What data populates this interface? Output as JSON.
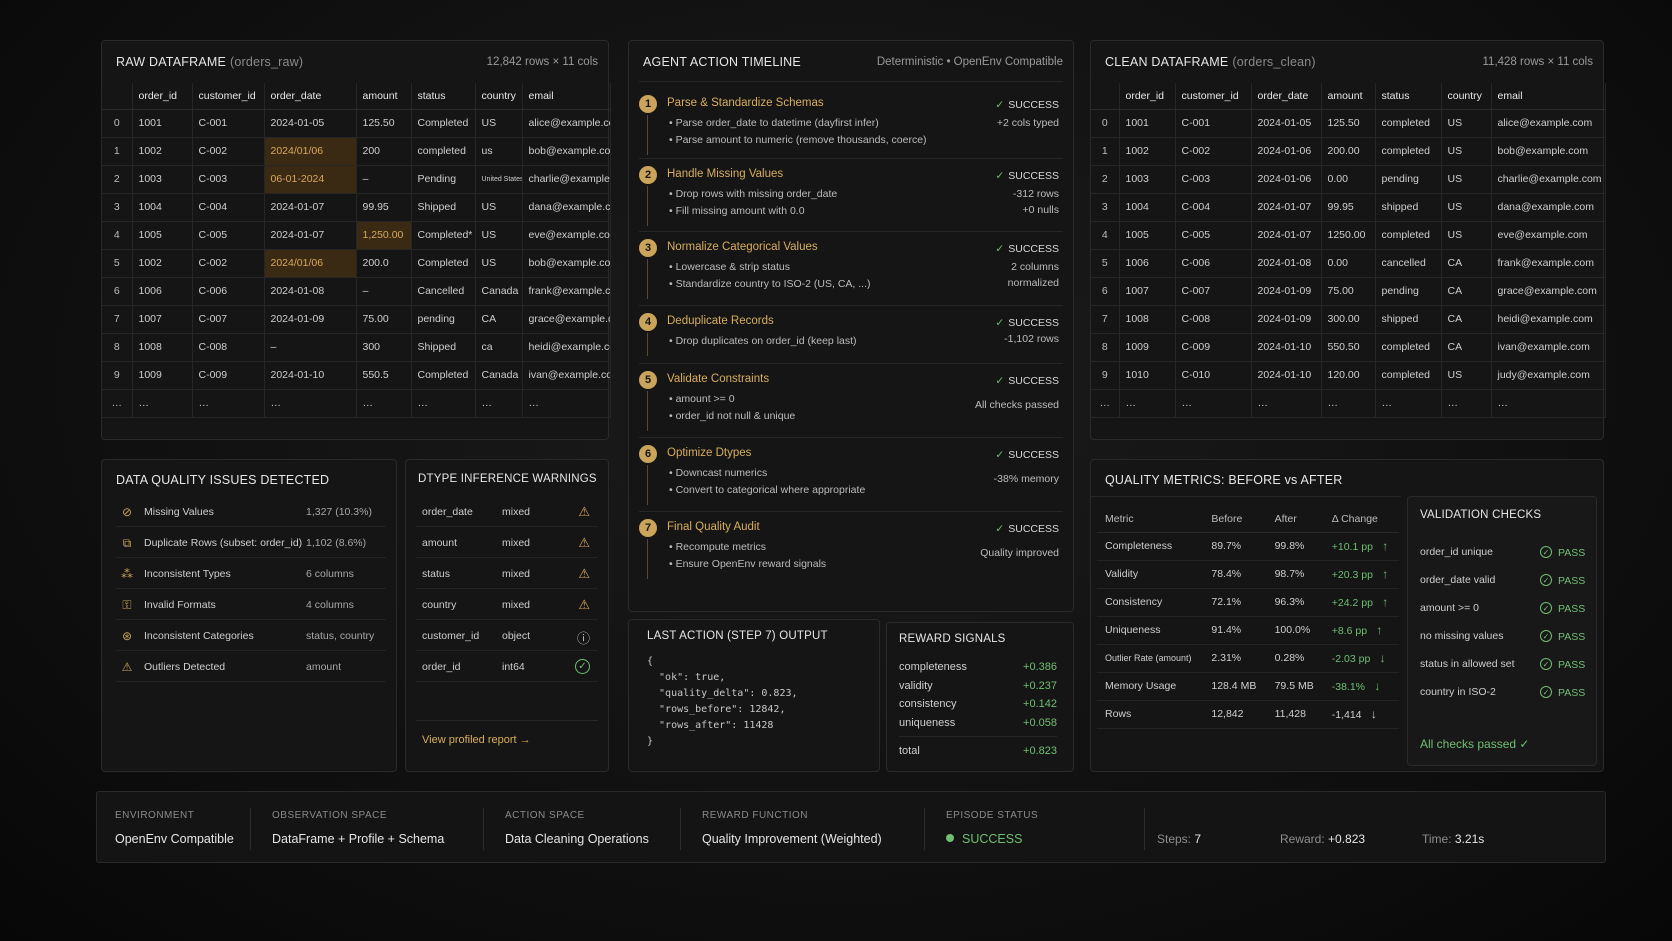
{
  "raw": {
    "title": "RAW DATAFRAME",
    "subtitle": "(orders_raw)",
    "meta": "12,842 rows × 11 cols",
    "columns": [
      "",
      "order_id",
      "customer_id",
      "order_date",
      "amount",
      "status",
      "country",
      "email"
    ],
    "rows": [
      [
        "0",
        "1001",
        "C-001",
        "2024-01-05",
        "125.50",
        "Completed",
        "US",
        "alice@example.com"
      ],
      [
        "1",
        "1002",
        "C-002",
        "2024/01/06",
        "200",
        "completed",
        "us",
        "bob@example.com"
      ],
      [
        "2",
        "1003",
        "C-003",
        "06-01-2024",
        "–",
        "Pending",
        "United States",
        "charlie@example.com"
      ],
      [
        "3",
        "1004",
        "C-004",
        "2024-01-07",
        "99.95",
        "Shipped",
        "US",
        "dana@example.com"
      ],
      [
        "4",
        "1005",
        "C-005",
        "2024-01-07",
        "1,250.00",
        "Completed*",
        "US",
        "eve@example.com"
      ],
      [
        "5",
        "1002",
        "C-002",
        "2024/01/06",
        "200.0",
        "Completed",
        "US",
        "bob@example.com"
      ],
      [
        "6",
        "1006",
        "C-006",
        "2024-01-08",
        "–",
        "Cancelled",
        "Canada",
        "frank@example.com"
      ],
      [
        "7",
        "1007",
        "C-007",
        "2024-01-09",
        "75.00",
        "pending",
        "CA",
        "grace@example.com"
      ],
      [
        "8",
        "1008",
        "C-008",
        "–",
        "300",
        "Shipped",
        "ca",
        "heidi@example.com"
      ],
      [
        "9",
        "1009",
        "C-009",
        "2024-01-10",
        "550.5",
        "Completed",
        "Canada",
        "ivan@example.com"
      ],
      [
        "…",
        "…",
        "…",
        "…",
        "…",
        "…",
        "…",
        "…"
      ]
    ]
  },
  "timeline": {
    "title": "AGENT ACTION TIMELINE",
    "meta": "Deterministic • OpenEnv Compatible",
    "steps": [
      {
        "num": "1",
        "title": "Parse & Standardize Schemas",
        "bullets": [
          "Parse order_date to datetime (dayfirst infer)",
          "Parse amount to numeric (remove thousands, coerce)"
        ],
        "status": "SUCCESS",
        "result": [
          "+2 cols typed"
        ]
      },
      {
        "num": "2",
        "title": "Handle Missing Values",
        "bullets": [
          "Drop rows with missing order_date",
          "Fill missing amount with 0.0"
        ],
        "status": "SUCCESS",
        "result": [
          "-312 rows",
          "+0 nulls"
        ]
      },
      {
        "num": "3",
        "title": "Normalize Categorical Values",
        "bullets": [
          "Lowercase & strip status",
          "Standardize country to ISO-2 (US, CA, ...)"
        ],
        "status": "SUCCESS",
        "result": [
          "2 columns",
          "normalized"
        ]
      },
      {
        "num": "4",
        "title": "Deduplicate Records",
        "bullets": [
          "Drop duplicates on order_id (keep last)"
        ],
        "status": "SUCCESS",
        "result": [
          "-1,102 rows"
        ]
      },
      {
        "num": "5",
        "title": "Validate Constraints",
        "bullets": [
          "amount >= 0",
          "order_id not null & unique"
        ],
        "status": "SUCCESS",
        "result": [
          "All checks passed"
        ]
      },
      {
        "num": "6",
        "title": "Optimize Dtypes",
        "bullets": [
          "Downcast numerics",
          "Convert to categorical where appropriate"
        ],
        "status": "SUCCESS",
        "result": [
          "-38% memory"
        ]
      },
      {
        "num": "7",
        "title": "Final Quality Audit",
        "bullets": [
          "Recompute metrics",
          "Ensure OpenEnv reward signals"
        ],
        "status": "SUCCESS",
        "result": [
          "Quality improved"
        ]
      }
    ]
  },
  "clean": {
    "title": "CLEAN DATAFRAME",
    "subtitle": "(orders_clean)",
    "meta": "11,428 rows × 11 cols",
    "columns": [
      "",
      "order_id",
      "customer_id",
      "order_date",
      "amount",
      "status",
      "country",
      "email"
    ],
    "rows": [
      [
        "0",
        "1001",
        "C-001",
        "2024-01-05",
        "125.50",
        "completed",
        "US",
        "alice@example.com"
      ],
      [
        "1",
        "1002",
        "C-002",
        "2024-01-06",
        "200.00",
        "completed",
        "US",
        "bob@example.com"
      ],
      [
        "2",
        "1003",
        "C-003",
        "2024-01-06",
        "0.00",
        "pending",
        "US",
        "charlie@example.com"
      ],
      [
        "3",
        "1004",
        "C-004",
        "2024-01-07",
        "99.95",
        "shipped",
        "US",
        "dana@example.com"
      ],
      [
        "4",
        "1005",
        "C-005",
        "2024-01-07",
        "1250.00",
        "completed",
        "US",
        "eve@example.com"
      ],
      [
        "5",
        "1006",
        "C-006",
        "2024-01-08",
        "0.00",
        "cancelled",
        "CA",
        "frank@example.com"
      ],
      [
        "6",
        "1007",
        "C-007",
        "2024-01-09",
        "75.00",
        "pending",
        "CA",
        "grace@example.com"
      ],
      [
        "7",
        "1008",
        "C-008",
        "2024-01-09",
        "300.00",
        "shipped",
        "CA",
        "heidi@example.com"
      ],
      [
        "8",
        "1009",
        "C-009",
        "2024-01-10",
        "550.50",
        "completed",
        "CA",
        "ivan@example.com"
      ],
      [
        "9",
        "1010",
        "C-010",
        "2024-01-10",
        "120.00",
        "completed",
        "US",
        "judy@example.com"
      ],
      [
        "…",
        "…",
        "…",
        "…",
        "…",
        "…",
        "…",
        "…"
      ]
    ]
  },
  "issues": {
    "title": "DATA QUALITY ISSUES DETECTED",
    "items": [
      {
        "icon": "missing-values-icon",
        "glyph": "⊘",
        "label": "Missing Values",
        "value": "1,327 (10.3%)"
      },
      {
        "icon": "duplicate-rows-icon",
        "glyph": "⧉",
        "label": "Duplicate Rows (subset: order_id)",
        "value": "1,102 (8.6%)"
      },
      {
        "icon": "inconsistent-types-icon",
        "glyph": "⁂",
        "label": "Inconsistent Types",
        "value": "6 columns"
      },
      {
        "icon": "invalid-formats-icon",
        "glyph": "⚿",
        "label": "Invalid Formats",
        "value": "4 columns"
      },
      {
        "icon": "inconsistent-categories-icon",
        "glyph": "⊛",
        "label": "Inconsistent Categories",
        "value": "status, country"
      },
      {
        "icon": "outliers-icon",
        "glyph": "⚠",
        "label": "Outliers Detected",
        "value": "amount"
      }
    ]
  },
  "dtype": {
    "title": "DTYPE INFERENCE WARNINGS",
    "items": [
      {
        "col": "order_date",
        "type": "mixed",
        "icon": "warning-icon"
      },
      {
        "col": "amount",
        "type": "mixed",
        "icon": "warning-icon"
      },
      {
        "col": "status",
        "type": "mixed",
        "icon": "warning-icon"
      },
      {
        "col": "country",
        "type": "mixed",
        "icon": "warning-icon"
      },
      {
        "col": "customer_id",
        "type": "object",
        "icon": "info-icon"
      },
      {
        "col": "order_id",
        "type": "int64",
        "icon": "check-circle-icon"
      }
    ],
    "link": "View profiled report →"
  },
  "last_action": {
    "title": "LAST ACTION (STEP 7) OUTPUT",
    "code": "{\n  \"ok\": true,\n  \"quality_delta\": 0.823,\n  \"rows_before\": 12842,\n  \"rows_after\": 11428\n}"
  },
  "reward": {
    "title": "REWARD SIGNALS",
    "items": [
      {
        "label": "completeness",
        "value": "+0.386"
      },
      {
        "label": "validity",
        "value": "+0.237"
      },
      {
        "label": "consistency",
        "value": "+0.142"
      },
      {
        "label": "uniqueness",
        "value": "+0.058"
      }
    ],
    "total_label": "total",
    "total_value": "+0.823"
  },
  "metrics": {
    "title": "QUALITY METRICS: BEFORE vs AFTER",
    "headers": [
      "Metric",
      "Before",
      "After",
      "Δ Change"
    ],
    "rows": [
      {
        "metric": "Completeness",
        "before": "89.7%",
        "after": "99.8%",
        "change": "+10.1 pp",
        "dir": "up"
      },
      {
        "metric": "Validity",
        "before": "78.4%",
        "after": "98.7%",
        "change": "+20.3 pp",
        "dir": "up"
      },
      {
        "metric": "Consistency",
        "before": "72.1%",
        "after": "96.3%",
        "change": "+24.2 pp",
        "dir": "up"
      },
      {
        "metric": "Uniqueness",
        "before": "91.4%",
        "after": "100.0%",
        "change": "+8.6 pp",
        "dir": "up"
      },
      {
        "metric": "Outlier Rate (amount)",
        "before": "2.31%",
        "after": "0.28%",
        "change": "-2.03 pp",
        "dir": "down"
      },
      {
        "metric": "Memory Usage",
        "before": "128.4 MB",
        "after": "79.5 MB",
        "change": "-38.1%",
        "dir": "down"
      },
      {
        "metric": "Rows",
        "before": "12,842",
        "after": "11,428",
        "change": "-1,414",
        "dir": "down"
      }
    ]
  },
  "validation": {
    "title": "VALIDATION CHECKS",
    "items": [
      {
        "label": "order_id unique",
        "status": "PASS"
      },
      {
        "label": "order_date valid",
        "status": "PASS"
      },
      {
        "label": "amount >= 0",
        "status": "PASS"
      },
      {
        "label": "no missing values",
        "status": "PASS"
      },
      {
        "label": "status in allowed set",
        "status": "PASS"
      },
      {
        "label": "country in ISO-2",
        "status": "PASS"
      }
    ],
    "footer": "All checks passed ✓"
  },
  "bottom": {
    "environment_label": "ENVIRONMENT",
    "environment_value": "OpenEnv Compatible",
    "obs_label": "OBSERVATION SPACE",
    "obs_value": "DataFrame + Profile + Schema",
    "action_label": "ACTION SPACE",
    "action_value": "Data Cleaning Operations",
    "reward_label": "REWARD FUNCTION",
    "reward_value": "Quality Improvement (Weighted)",
    "episode_label": "EPISODE STATUS",
    "episode_value": "SUCCESS",
    "steps_label": "Steps:",
    "steps_value": "7",
    "reward_total_label": "Reward:",
    "reward_total_value": "+0.823",
    "time_label": "Time:",
    "time_value": "3.21s"
  },
  "colors": {
    "accent": "#c9a45a",
    "success": "#6fbf73",
    "highlight_bg": "#3a2a14"
  }
}
